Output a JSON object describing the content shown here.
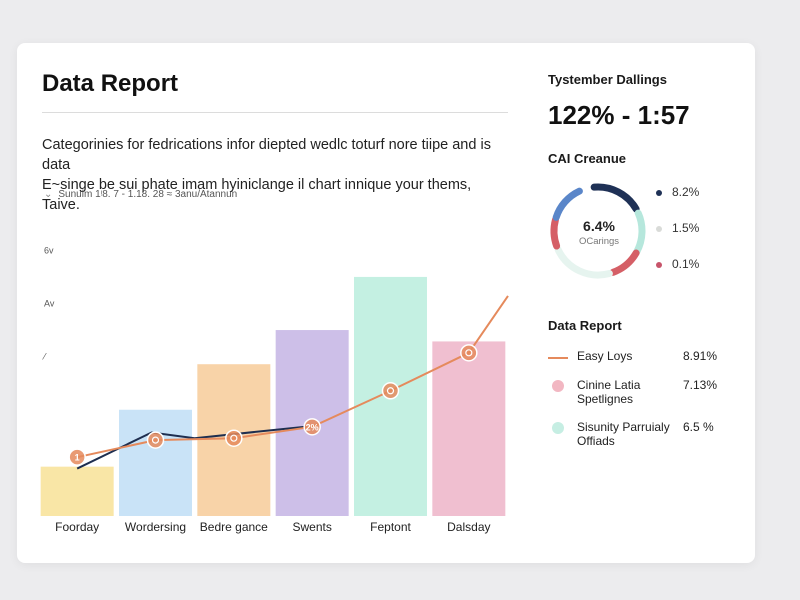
{
  "report": {
    "title": "Data Report",
    "description_line1": "Categorinies for fedrications infor diepted wedlc toturf nore tiipe and is data",
    "description_line2": "E~singe be sui phate imam hyiniclange il chart innique your thems, Taive.",
    "chart_source": "Sunulm 1ᵎ8. 7 - 1.18. 28 ≈ 3anu/Atannun"
  },
  "side": {
    "title": "Tystember Dallings",
    "big_metric": "122% - 1:57",
    "donut_heading": "CAI Creanue",
    "donut_center_value": "6.4%",
    "donut_center_label": "OCarings",
    "legend_heading": "Data Report"
  },
  "colors": {
    "line_orange": "#e58a5c",
    "line_navy": "#1e2e4f",
    "donut_navy": "#1f3156",
    "donut_mint": "#b6e7dc",
    "donut_red": "#d55f66",
    "donut_blue": "#5a86c9"
  },
  "donut_legend": [
    {
      "value": "8.2%",
      "color": "#1f3156"
    },
    {
      "value": "1.5%",
      "color": "#d9dbd8"
    },
    {
      "value": "0.1%",
      "color": "#c7546a"
    }
  ],
  "series_legend": [
    {
      "name": "Easy Loys",
      "value": "8.91%",
      "mark": "line",
      "color": "#e58a5c"
    },
    {
      "name": "Cinine Latia Spetlignes",
      "value": "7.13%",
      "mark": "circ",
      "color": "#f2b7c2"
    },
    {
      "name": "Sisunity Parruialy Offiads",
      "value": "6.5 %",
      "mark": "circ",
      "color": "#c6eee3"
    }
  ],
  "chart_data": {
    "type": "bar",
    "title": "",
    "categories": [
      "Foorday",
      "Wordersing",
      "Bedre gance",
      "Swents",
      "Feptont",
      "Dalsday"
    ],
    "series": [
      {
        "type": "bar",
        "values": [
          1.3,
          2.8,
          4.0,
          4.9,
          6.3,
          4.6
        ],
        "colors": [
          "#f9e6a6",
          "#c9e3f7",
          "#f8d3a8",
          "#cdbfe8",
          "#c4f0e2",
          "#f0bfd0"
        ]
      },
      {
        "type": "line",
        "color": "#e58a5c",
        "x": [
          0.5,
          1.5,
          2.5,
          3.5,
          4.5,
          5.5,
          6.0
        ],
        "values": [
          1.55,
          2.0,
          2.05,
          2.35,
          3.3,
          4.3,
          5.8
        ],
        "markers": [
          {
            "index": 0,
            "label": "1"
          },
          {
            "index": 1,
            "label": ""
          },
          {
            "index": 2,
            "label": ""
          },
          {
            "index": 3,
            "label": "2%"
          },
          {
            "index": 4,
            "label": ""
          },
          {
            "index": 5,
            "label": ""
          }
        ]
      },
      {
        "type": "line",
        "color": "#1e2e4f",
        "x": [
          0.5,
          1.45,
          2.0,
          3.4
        ],
        "values": [
          1.25,
          2.2,
          2.05,
          2.35
        ]
      }
    ],
    "y_tick_labels": [
      {
        "value": 7.0,
        "label": "6v"
      },
      {
        "value": 5.6,
        "label": "Av"
      },
      {
        "value": 4.2,
        "label": "⁄"
      }
    ],
    "ylim": [
      0,
      7.8
    ],
    "grid": false
  }
}
